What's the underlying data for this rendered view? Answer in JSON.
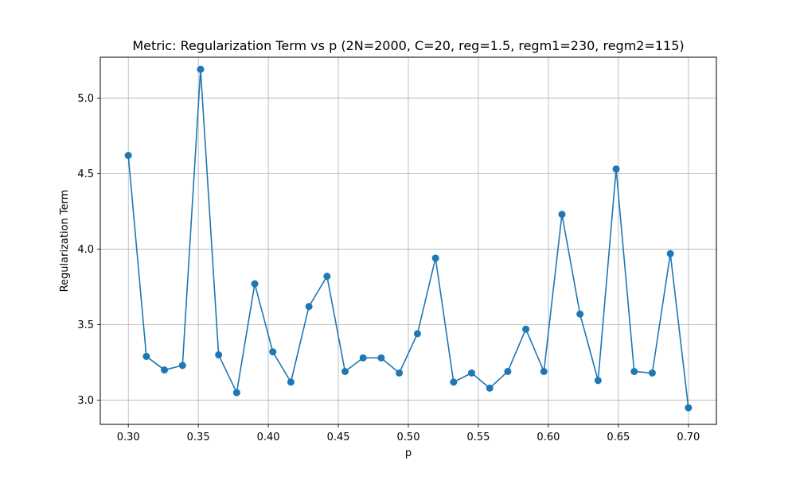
{
  "chart_data": {
    "type": "line",
    "title": "Metric: Regularization Term vs p (2N=2000, C=20, reg=1.5, regm1=230, regm2=115)",
    "xlabel": "p",
    "ylabel": "Regularization Term",
    "xlim": [
      0.28,
      0.72
    ],
    "ylim": [
      2.84,
      5.27
    ],
    "xticks": [
      0.3,
      0.35,
      0.4,
      0.45,
      0.5,
      0.55,
      0.6,
      0.65,
      0.7
    ],
    "xtick_labels": [
      "0.30",
      "0.35",
      "0.40",
      "0.45",
      "0.50",
      "0.55",
      "0.60",
      "0.65",
      "0.70"
    ],
    "yticks": [
      3.0,
      3.5,
      4.0,
      4.5,
      5.0
    ],
    "ytick_labels": [
      "3.0",
      "3.5",
      "4.0",
      "4.5",
      "5.0"
    ],
    "grid": true,
    "color": "#1f77b4",
    "marker": "circle",
    "x": [
      0.3,
      0.3129,
      0.3258,
      0.3387,
      0.3516,
      0.3645,
      0.3774,
      0.3903,
      0.4032,
      0.4161,
      0.429,
      0.4419,
      0.4548,
      0.4677,
      0.4806,
      0.4935,
      0.5065,
      0.5194,
      0.5323,
      0.5452,
      0.5581,
      0.571,
      0.5839,
      0.5968,
      0.6097,
      0.6226,
      0.6355,
      0.6484,
      0.6613,
      0.6742,
      0.6871,
      0.7
    ],
    "y": [
      4.62,
      3.29,
      3.2,
      3.23,
      5.19,
      3.3,
      3.05,
      3.77,
      3.32,
      3.12,
      3.62,
      3.82,
      3.19,
      3.28,
      3.28,
      3.18,
      3.44,
      3.94,
      3.12,
      3.18,
      3.08,
      3.19,
      3.47,
      3.19,
      4.23,
      3.57,
      3.13,
      4.53,
      3.19,
      3.18,
      3.97,
      2.95
    ]
  }
}
